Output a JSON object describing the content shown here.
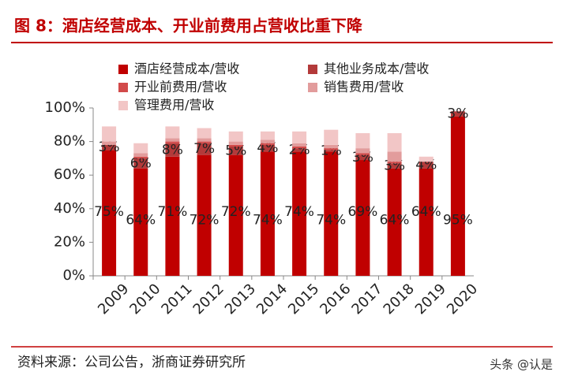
{
  "chart_data": {
    "type": "stacked_bar",
    "title": "图 8：酒店经营成本、开业前费用占营收比重下降",
    "categories": [
      "2009",
      "2010",
      "2011",
      "2012",
      "2013",
      "2014",
      "2015",
      "2016",
      "2017",
      "2018",
      "2019",
      "2020"
    ],
    "series": [
      {
        "name": "酒店经营成本/营收",
        "color": "#c00000",
        "values": [
          75,
          64,
          71,
          72,
          72,
          74,
          74,
          74,
          69,
          64,
          64,
          95
        ],
        "value_labels": [
          "75%",
          "64%",
          "71%",
          "72%",
          "72%",
          "74%",
          "74%",
          "74%",
          "69%",
          "64%",
          "64%",
          "95%"
        ]
      },
      {
        "name": "其他业务成本/营收",
        "color": "#b33a3a",
        "values": [
          3,
          6,
          8,
          7,
          5,
          4,
          2,
          1,
          3,
          3,
          4,
          3
        ],
        "value_labels": [
          "3%",
          "6%",
          "8%",
          "7%",
          "5%",
          "4%",
          "2%",
          "1%",
          "3%",
          "3%",
          "4%",
          "3%"
        ]
      },
      {
        "name": "开业前费用/营收",
        "color": "#d24a4a",
        "values": [
          0,
          1,
          1,
          1,
          1,
          1,
          1,
          1,
          1,
          1,
          0,
          0
        ]
      },
      {
        "name": "销售费用/营收",
        "color": "#e29c9c",
        "values": [
          2,
          2,
          2,
          2,
          2,
          2,
          2,
          2,
          3,
          6,
          0,
          0
        ]
      },
      {
        "name": "管理费用/营收",
        "color": "#f2c6c6",
        "values": [
          9,
          6,
          7,
          6,
          6,
          5,
          7,
          9,
          9,
          11,
          3,
          0
        ]
      }
    ],
    "ylim": [
      0,
      100
    ],
    "yticks": [
      {
        "value": 0,
        "label": "0%"
      },
      {
        "value": 20,
        "label": "20%"
      },
      {
        "value": 40,
        "label": "40%"
      },
      {
        "value": 60,
        "label": "60%"
      },
      {
        "value": 80,
        "label": "80%"
      },
      {
        "value": 100,
        "label": "100%"
      }
    ],
    "source": "资料来源：公司公告，浙商证券研究所"
  },
  "watermark": "头条 @认是"
}
